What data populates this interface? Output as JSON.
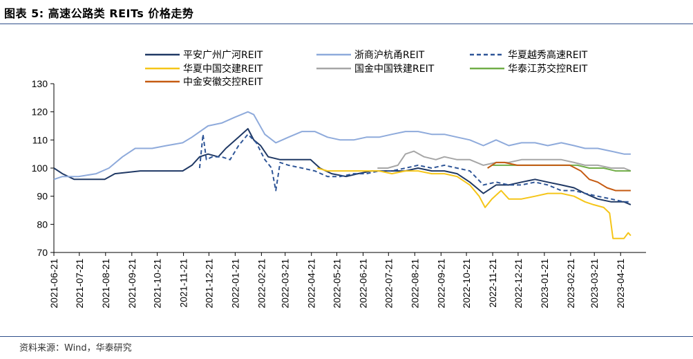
{
  "figure": {
    "title": "图表 5:    高速公路类 REITs 价格走势",
    "source": "资料来源：Wind，华泰研究"
  },
  "chart_data": {
    "type": "line",
    "ylim": [
      70,
      130
    ],
    "yticks": [
      70,
      80,
      90,
      100,
      110,
      120,
      130
    ],
    "x_start": "2021-06-21",
    "x_end": "2023-05-21",
    "x_tick_labels": [
      "2021-06-21",
      "2021-07-21",
      "2021-08-21",
      "2021-09-21",
      "2021-10-21",
      "2021-11-21",
      "2021-12-21",
      "2022-01-21",
      "2022-02-21",
      "2022-03-21",
      "2022-04-21",
      "2022-05-21",
      "2022-06-21",
      "2022-07-21",
      "2022-08-21",
      "2022-09-21",
      "2022-10-21",
      "2022-11-21",
      "2022-12-21",
      "2023-01-21",
      "2023-02-21",
      "2023-03-21",
      "2023-04-21"
    ],
    "legend_placement": "top",
    "grid": false,
    "series": [
      {
        "name": "平安广州广河REIT",
        "color": "#1f3864",
        "dash": "solid",
        "points": [
          [
            "2021-06-21",
            100
          ],
          [
            "2021-07-01",
            98
          ],
          [
            "2021-07-15",
            96
          ],
          [
            "2021-08-20",
            96
          ],
          [
            "2021-09-01",
            98
          ],
          [
            "2021-10-01",
            99
          ],
          [
            "2021-11-01",
            99
          ],
          [
            "2021-11-20",
            99
          ],
          [
            "2021-12-01",
            101
          ],
          [
            "2021-12-10",
            104
          ],
          [
            "2021-12-20",
            105
          ],
          [
            "2022-01-01",
            104
          ],
          [
            "2022-01-10",
            107
          ],
          [
            "2022-01-25",
            111
          ],
          [
            "2022-02-05",
            114
          ],
          [
            "2022-02-12",
            110
          ],
          [
            "2022-02-20",
            108
          ],
          [
            "2022-03-01",
            104
          ],
          [
            "2022-03-15",
            103
          ],
          [
            "2022-04-01",
            103
          ],
          [
            "2022-04-20",
            103
          ],
          [
            "2022-05-01",
            100
          ],
          [
            "2022-05-15",
            98
          ],
          [
            "2022-06-01",
            97
          ],
          [
            "2022-06-15",
            98
          ],
          [
            "2022-07-01",
            99
          ],
          [
            "2022-07-20",
            99
          ],
          [
            "2022-08-10",
            99
          ],
          [
            "2022-08-25",
            100
          ],
          [
            "2022-09-10",
            99
          ],
          [
            "2022-09-25",
            99
          ],
          [
            "2022-10-10",
            98
          ],
          [
            "2022-10-25",
            95
          ],
          [
            "2022-11-10",
            91
          ],
          [
            "2022-11-25",
            94
          ],
          [
            "2022-12-10",
            94
          ],
          [
            "2022-12-25",
            95
          ],
          [
            "2023-01-10",
            96
          ],
          [
            "2023-01-25",
            95
          ],
          [
            "2023-02-10",
            94
          ],
          [
            "2023-02-25",
            93
          ],
          [
            "2023-03-10",
            91
          ],
          [
            "2023-03-25",
            89
          ],
          [
            "2023-04-10",
            88
          ],
          [
            "2023-04-25",
            88
          ],
          [
            "2023-05-03",
            87
          ]
        ]
      },
      {
        "name": "浙商沪杭甬REIT",
        "color": "#8eaadb",
        "dash": "solid",
        "points": [
          [
            "2021-06-21",
            96
          ],
          [
            "2021-07-01",
            97
          ],
          [
            "2021-07-20",
            97
          ],
          [
            "2021-08-10",
            98
          ],
          [
            "2021-08-25",
            100
          ],
          [
            "2021-09-10",
            104
          ],
          [
            "2021-09-25",
            107
          ],
          [
            "2021-10-15",
            107
          ],
          [
            "2021-11-01",
            108
          ],
          [
            "2021-11-20",
            109
          ],
          [
            "2021-12-01",
            111
          ],
          [
            "2021-12-20",
            115
          ],
          [
            "2022-01-05",
            116
          ],
          [
            "2022-01-20",
            118
          ],
          [
            "2022-02-05",
            120
          ],
          [
            "2022-02-12",
            119
          ],
          [
            "2022-02-25",
            112
          ],
          [
            "2022-03-10",
            109
          ],
          [
            "2022-03-25",
            111
          ],
          [
            "2022-04-10",
            113
          ],
          [
            "2022-04-25",
            113
          ],
          [
            "2022-05-10",
            111
          ],
          [
            "2022-05-25",
            110
          ],
          [
            "2022-06-10",
            110
          ],
          [
            "2022-06-25",
            111
          ],
          [
            "2022-07-10",
            111
          ],
          [
            "2022-07-25",
            112
          ],
          [
            "2022-08-10",
            113
          ],
          [
            "2022-08-25",
            113
          ],
          [
            "2022-09-10",
            112
          ],
          [
            "2022-09-25",
            112
          ],
          [
            "2022-10-10",
            111
          ],
          [
            "2022-10-25",
            110
          ],
          [
            "2022-11-10",
            108
          ],
          [
            "2022-11-25",
            110
          ],
          [
            "2022-12-10",
            108
          ],
          [
            "2022-12-25",
            109
          ],
          [
            "2023-01-10",
            109
          ],
          [
            "2023-01-25",
            108
          ],
          [
            "2023-02-10",
            109
          ],
          [
            "2023-02-25",
            108
          ],
          [
            "2023-03-10",
            107
          ],
          [
            "2023-03-25",
            107
          ],
          [
            "2023-04-10",
            106
          ],
          [
            "2023-04-25",
            105
          ],
          [
            "2023-05-03",
            105
          ]
        ]
      },
      {
        "name": "华夏越秀高速REIT",
        "color": "#2e5597",
        "dash": "dash",
        "points": [
          [
            "2021-12-10",
            100
          ],
          [
            "2021-12-14",
            112
          ],
          [
            "2021-12-18",
            103
          ],
          [
            "2021-12-25",
            104
          ],
          [
            "2022-01-05",
            104
          ],
          [
            "2022-01-15",
            103
          ],
          [
            "2022-01-25",
            108
          ],
          [
            "2022-02-05",
            112
          ],
          [
            "2022-02-15",
            109
          ],
          [
            "2022-02-25",
            103
          ],
          [
            "2022-03-05",
            100
          ],
          [
            "2022-03-10",
            92
          ],
          [
            "2022-03-15",
            102
          ],
          [
            "2022-03-25",
            101
          ],
          [
            "2022-04-10",
            100
          ],
          [
            "2022-04-25",
            99
          ],
          [
            "2022-05-10",
            97
          ],
          [
            "2022-05-25",
            97
          ],
          [
            "2022-06-10",
            98
          ],
          [
            "2022-06-25",
            98
          ],
          [
            "2022-07-10",
            99
          ],
          [
            "2022-07-25",
            99
          ],
          [
            "2022-08-10",
            100
          ],
          [
            "2022-08-25",
            101
          ],
          [
            "2022-09-10",
            100
          ],
          [
            "2022-09-25",
            101
          ],
          [
            "2022-10-10",
            100
          ],
          [
            "2022-10-25",
            99
          ],
          [
            "2022-11-10",
            94
          ],
          [
            "2022-11-25",
            95
          ],
          [
            "2022-12-10",
            94
          ],
          [
            "2022-12-25",
            94
          ],
          [
            "2023-01-10",
            95
          ],
          [
            "2023-01-25",
            94
          ],
          [
            "2023-02-10",
            92
          ],
          [
            "2023-02-25",
            92
          ],
          [
            "2023-03-10",
            91
          ],
          [
            "2023-03-25",
            90
          ],
          [
            "2023-04-10",
            89
          ],
          [
            "2023-04-25",
            88
          ],
          [
            "2023-05-03",
            88
          ]
        ]
      },
      {
        "name": "华夏中国交建REIT",
        "color": "#f5c518",
        "dash": "solid",
        "points": [
          [
            "2022-04-28",
            100
          ],
          [
            "2022-05-10",
            99
          ],
          [
            "2022-05-25",
            99
          ],
          [
            "2022-06-10",
            99
          ],
          [
            "2022-06-25",
            99
          ],
          [
            "2022-07-10",
            99
          ],
          [
            "2022-07-25",
            98
          ],
          [
            "2022-08-10",
            99
          ],
          [
            "2022-08-25",
            99
          ],
          [
            "2022-09-10",
            98
          ],
          [
            "2022-09-25",
            98
          ],
          [
            "2022-10-10",
            97
          ],
          [
            "2022-10-25",
            94
          ],
          [
            "2022-11-05",
            90
          ],
          [
            "2022-11-12",
            86
          ],
          [
            "2022-11-20",
            89
          ],
          [
            "2022-12-01",
            92
          ],
          [
            "2022-12-10",
            89
          ],
          [
            "2022-12-25",
            89
          ],
          [
            "2023-01-10",
            90
          ],
          [
            "2023-01-25",
            91
          ],
          [
            "2023-02-10",
            91
          ],
          [
            "2023-02-25",
            90
          ],
          [
            "2023-03-10",
            88
          ],
          [
            "2023-03-20",
            87
          ],
          [
            "2023-04-01",
            86
          ],
          [
            "2023-04-08",
            84
          ],
          [
            "2023-04-12",
            75
          ],
          [
            "2023-04-25",
            75
          ],
          [
            "2023-04-30",
            77
          ],
          [
            "2023-05-03",
            76
          ]
        ]
      },
      {
        "name": "国金中国铁建REIT",
        "color": "#a6a6a6",
        "dash": "solid",
        "points": [
          [
            "2022-07-08",
            100
          ],
          [
            "2022-07-20",
            100
          ],
          [
            "2022-08-01",
            101
          ],
          [
            "2022-08-10",
            105
          ],
          [
            "2022-08-20",
            106
          ],
          [
            "2022-09-01",
            104
          ],
          [
            "2022-09-15",
            103
          ],
          [
            "2022-09-25",
            104
          ],
          [
            "2022-10-10",
            103
          ],
          [
            "2022-10-25",
            103
          ],
          [
            "2022-11-10",
            101
          ],
          [
            "2022-11-25",
            102
          ],
          [
            "2022-12-10",
            102
          ],
          [
            "2022-12-25",
            103
          ],
          [
            "2023-01-10",
            103
          ],
          [
            "2023-01-25",
            103
          ],
          [
            "2023-02-10",
            103
          ],
          [
            "2023-02-25",
            102
          ],
          [
            "2023-03-10",
            101
          ],
          [
            "2023-03-25",
            101
          ],
          [
            "2023-04-10",
            100
          ],
          [
            "2023-04-25",
            100
          ],
          [
            "2023-05-03",
            99
          ]
        ]
      },
      {
        "name": "华泰江苏交控REIT",
        "color": "#70ad47",
        "dash": "solid",
        "points": [
          [
            "2022-11-15",
            100
          ],
          [
            "2022-11-20",
            101
          ],
          [
            "2022-12-01",
            101
          ],
          [
            "2022-12-15",
            101
          ],
          [
            "2023-01-01",
            101
          ],
          [
            "2023-01-15",
            101
          ],
          [
            "2023-02-01",
            101
          ],
          [
            "2023-02-15",
            101
          ],
          [
            "2023-03-01",
            101
          ],
          [
            "2023-03-15",
            100
          ],
          [
            "2023-04-01",
            100
          ],
          [
            "2023-04-15",
            99
          ],
          [
            "2023-05-03",
            99
          ]
        ]
      },
      {
        "name": "中金安徽交控REIT",
        "color": "#c55a11",
        "dash": "solid",
        "points": [
          [
            "2022-11-15",
            100
          ],
          [
            "2022-11-25",
            102
          ],
          [
            "2022-12-05",
            102
          ],
          [
            "2022-12-20",
            101
          ],
          [
            "2023-01-05",
            101
          ],
          [
            "2023-01-20",
            101
          ],
          [
            "2023-02-05",
            101
          ],
          [
            "2023-02-20",
            101
          ],
          [
            "2023-03-05",
            99
          ],
          [
            "2023-03-15",
            96
          ],
          [
            "2023-03-25",
            95
          ],
          [
            "2023-04-05",
            93
          ],
          [
            "2023-04-15",
            92
          ],
          [
            "2023-05-03",
            92
          ]
        ]
      }
    ]
  }
}
